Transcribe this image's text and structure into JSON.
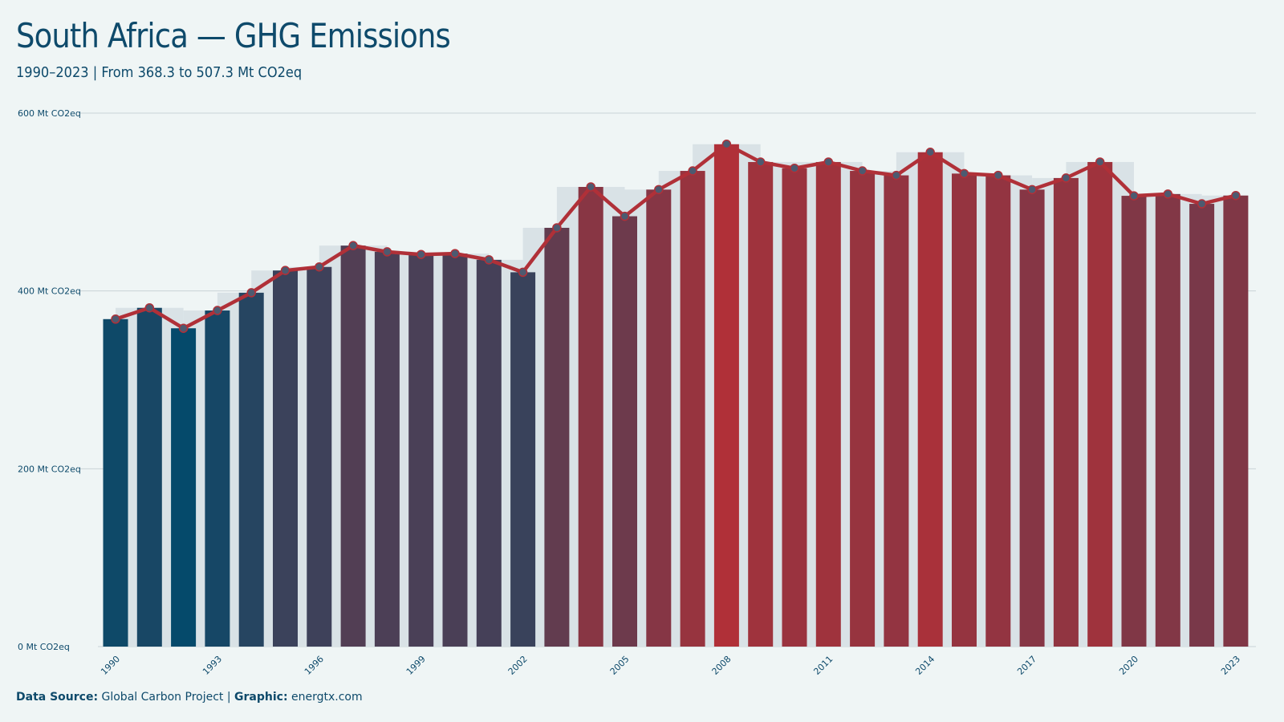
{
  "title": "South Africa — GHG Emissions",
  "subtitle": "1990–2023 | From 368.3 to 507.3 Mt CO2eq",
  "footer": {
    "source_label": "Data Source:",
    "source_value": "Global Carbon Project",
    "separator": "|",
    "graphic_label": "Graphic:",
    "graphic_value": "energtx.com"
  },
  "colors": {
    "background": "#eff5f5",
    "text": "#0e4a6b",
    "line": "#b03038",
    "low": "#054a6b",
    "high": "#b03038",
    "band": "#d9e2e6",
    "grid": "#c9d3d6"
  },
  "chart_data": {
    "type": "bar",
    "title": "South Africa — GHG Emissions",
    "subtitle": "1990–2023 | From 368.3 to 507.3 Mt CO2eq",
    "x": [
      1990,
      1991,
      1992,
      1993,
      1994,
      1995,
      1996,
      1997,
      1998,
      1999,
      2000,
      2001,
      2002,
      2003,
      2004,
      2005,
      2006,
      2007,
      2008,
      2009,
      2010,
      2011,
      2012,
      2013,
      2014,
      2015,
      2016,
      2017,
      2018,
      2019,
      2020,
      2021,
      2022,
      2023
    ],
    "values": [
      368.3,
      381,
      358,
      378,
      398,
      423,
      427,
      451,
      444,
      441,
      442,
      435,
      421,
      471,
      517,
      484,
      514,
      535,
      565,
      545,
      538,
      545,
      535,
      530,
      556,
      532,
      530,
      514,
      527,
      545,
      507,
      509,
      498,
      507.3
    ],
    "overlay": "line with markers",
    "ylim": [
      0,
      600
    ],
    "yticks": [
      0,
      200,
      400,
      600
    ],
    "ytick_labels": [
      "0 Mt CO2eq",
      "200 Mt CO2eq",
      "400 Mt CO2eq",
      "600 Mt CO2eq"
    ],
    "xticks": [
      1990,
      1993,
      1996,
      1999,
      2002,
      2005,
      2008,
      2011,
      2014,
      2017,
      2020,
      2023
    ],
    "xtick_labels": [
      "1990",
      "1993",
      "1996",
      "1999",
      "2002",
      "2005",
      "2008",
      "2011",
      "2014",
      "2017",
      "2020",
      "2023"
    ],
    "grid": true,
    "xlabel": "",
    "ylabel": ""
  }
}
